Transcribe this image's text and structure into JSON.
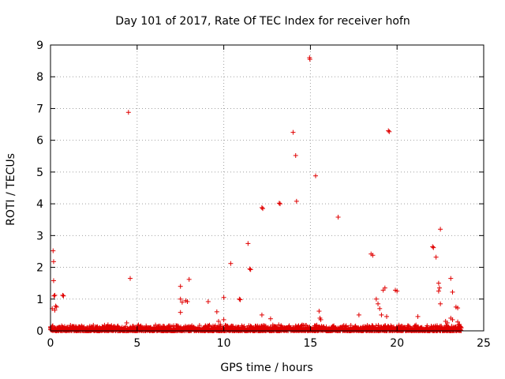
{
  "chart_data": {
    "type": "scatter",
    "title": "Day 101 of 2017, Rate Of TEC Index for receiver hofn",
    "xlabel": "GPS time / hours",
    "ylabel": "ROTI / TECUs",
    "xlim": [
      0,
      25
    ],
    "ylim": [
      0,
      9
    ],
    "x_ticks": [
      0,
      5,
      10,
      15,
      20,
      25
    ],
    "y_ticks": [
      0,
      1,
      2,
      3,
      4,
      5,
      6,
      7,
      8,
      9
    ],
    "grid": true,
    "marker": "+",
    "color": "#e00000",
    "baseline": {
      "x_range": [
        0,
        23.7
      ],
      "y_range": [
        0.0,
        0.2
      ],
      "description": "dense band of low ROTI values across the day"
    },
    "points": [
      [
        0.1,
        0.7
      ],
      [
        0.15,
        2.52
      ],
      [
        0.18,
        2.18
      ],
      [
        0.18,
        1.58
      ],
      [
        0.2,
        1.1
      ],
      [
        0.25,
        1.12
      ],
      [
        0.3,
        0.78
      ],
      [
        0.35,
        0.75
      ],
      [
        0.25,
        0.65
      ],
      [
        0.7,
        1.12
      ],
      [
        0.75,
        1.1
      ],
      [
        4.5,
        6.88
      ],
      [
        4.6,
        1.65
      ],
      [
        4.4,
        0.25
      ],
      [
        7.5,
        1.4
      ],
      [
        7.5,
        1.0
      ],
      [
        7.6,
        0.9
      ],
      [
        7.5,
        0.58
      ],
      [
        7.8,
        0.95
      ],
      [
        7.9,
        0.92
      ],
      [
        8.0,
        1.62
      ],
      [
        9.1,
        0.92
      ],
      [
        9.6,
        0.6
      ],
      [
        9.7,
        0.3
      ],
      [
        9.8,
        0.2
      ],
      [
        10.0,
        1.05
      ],
      [
        10.0,
        0.35
      ],
      [
        10.4,
        2.12
      ],
      [
        10.9,
        1.0
      ],
      [
        10.95,
        0.98
      ],
      [
        11.4,
        2.75
      ],
      [
        11.5,
        1.95
      ],
      [
        11.55,
        1.93
      ],
      [
        12.2,
        3.88
      ],
      [
        12.25,
        3.85
      ],
      [
        12.2,
        0.5
      ],
      [
        12.7,
        0.38
      ],
      [
        13.2,
        4.02
      ],
      [
        13.25,
        4.0
      ],
      [
        14.0,
        6.25
      ],
      [
        14.15,
        5.52
      ],
      [
        14.2,
        4.08
      ],
      [
        14.95,
        8.6
      ],
      [
        14.97,
        8.55
      ],
      [
        15.3,
        4.88
      ],
      [
        15.5,
        0.62
      ],
      [
        15.6,
        0.35
      ],
      [
        15.55,
        0.4
      ],
      [
        16.6,
        3.58
      ],
      [
        17.8,
        0.5
      ],
      [
        18.5,
        2.42
      ],
      [
        18.6,
        2.38
      ],
      [
        18.8,
        1.0
      ],
      [
        18.9,
        0.85
      ],
      [
        19.0,
        0.7
      ],
      [
        19.1,
        0.5
      ],
      [
        19.2,
        1.28
      ],
      [
        19.3,
        1.35
      ],
      [
        19.4,
        0.45
      ],
      [
        19.5,
        6.3
      ],
      [
        19.55,
        6.27
      ],
      [
        19.9,
        1.28
      ],
      [
        20.0,
        1.25
      ],
      [
        21.2,
        0.45
      ],
      [
        22.05,
        2.65
      ],
      [
        22.1,
        2.62
      ],
      [
        22.25,
        2.32
      ],
      [
        22.4,
        1.5
      ],
      [
        22.45,
        1.35
      ],
      [
        22.4,
        1.25
      ],
      [
        22.5,
        3.2
      ],
      [
        22.5,
        0.85
      ],
      [
        22.8,
        0.3
      ],
      [
        22.9,
        0.25
      ],
      [
        23.1,
        1.65
      ],
      [
        23.2,
        1.22
      ],
      [
        23.1,
        0.4
      ],
      [
        23.2,
        0.35
      ],
      [
        23.4,
        0.75
      ],
      [
        23.5,
        0.72
      ],
      [
        23.5,
        0.28
      ],
      [
        23.6,
        0.2
      ]
    ]
  }
}
